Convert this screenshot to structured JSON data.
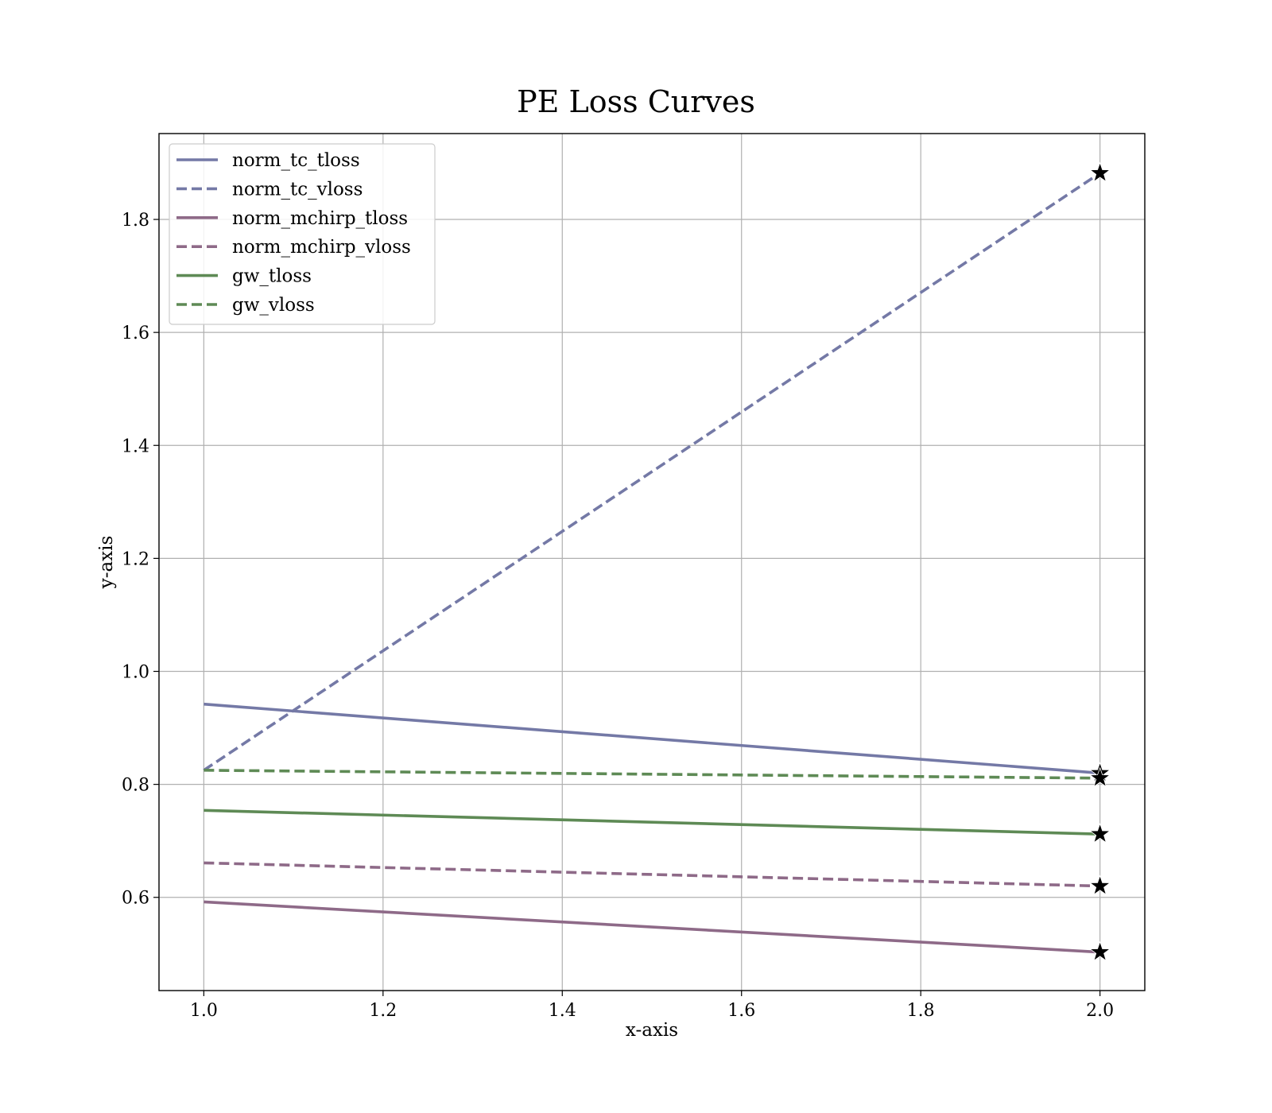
{
  "chart_data": {
    "type": "line",
    "title": "PE Loss Curves",
    "xlabel": "x-axis",
    "ylabel": "y-axis",
    "xlim": [
      0.95,
      2.05
    ],
    "ylim": [
      0.435,
      1.952
    ],
    "xticks": [
      1.0,
      1.2,
      1.4,
      1.6,
      1.8,
      2.0
    ],
    "xtick_labels": [
      "1.0",
      "1.2",
      "1.4",
      "1.6",
      "1.8",
      "2.0"
    ],
    "yticks": [
      0.6,
      0.8,
      1.0,
      1.2,
      1.4,
      1.6,
      1.8
    ],
    "ytick_labels": [
      "0.6",
      "0.8",
      "1.0",
      "1.2",
      "1.4",
      "1.6",
      "1.8"
    ],
    "grid": true,
    "legend_position": "top-left",
    "x": [
      1.0,
      2.0
    ],
    "series": [
      {
        "name": "norm_tc_tloss",
        "values": [
          0.942,
          0.82
        ],
        "color": "#7479a6",
        "dash": "solid"
      },
      {
        "name": "norm_tc_vloss",
        "values": [
          0.825,
          1.882
        ],
        "color": "#7479a6",
        "dash": "dashed"
      },
      {
        "name": "norm_mchirp_tloss",
        "values": [
          0.592,
          0.503
        ],
        "color": "#8e6a88",
        "dash": "solid"
      },
      {
        "name": "norm_mchirp_vloss",
        "values": [
          0.661,
          0.62
        ],
        "color": "#8e6a88",
        "dash": "dashed"
      },
      {
        "name": "gw_tloss",
        "values": [
          0.754,
          0.712
        ],
        "color": "#5e8a55",
        "dash": "solid"
      },
      {
        "name": "gw_vloss",
        "values": [
          0.825,
          0.811
        ],
        "color": "#5e8a55",
        "dash": "dashed"
      }
    ],
    "end_marker": "star"
  }
}
